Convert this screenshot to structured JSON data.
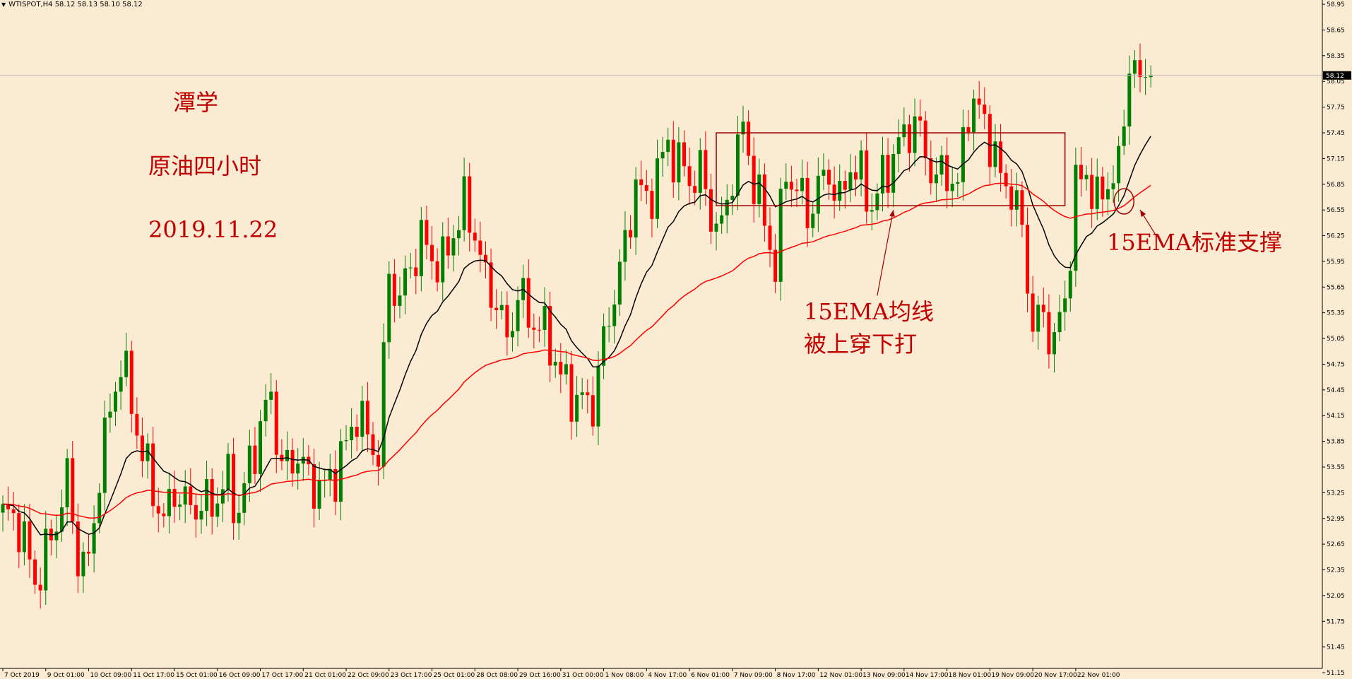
{
  "header": {
    "symbol_line": "WTISPOT,H4  58.12 58.13 58.10 58.12"
  },
  "annotations": {
    "author": "潭学",
    "subject": "原油四小时",
    "date": "2019.11.22",
    "broken_line_1": "15EMA均线",
    "broken_line_2": "被上穿下打",
    "support": "15EMA标准支撑"
  },
  "colors": {
    "background": "#fbebd3",
    "bull_candle": "#008000",
    "bear_candle": "#ff0000",
    "ema_fast": "#000000",
    "ema_slow": "#ff0000",
    "annotation": "#c00000"
  },
  "chart_data": {
    "type": "candlestick",
    "timeframe": "H4",
    "ylim": [
      51.2,
      59.0
    ],
    "y_ticks": [
      58.95,
      58.65,
      58.35,
      58.05,
      57.75,
      57.45,
      57.15,
      56.85,
      56.55,
      56.25,
      55.95,
      55.65,
      55.35,
      55.05,
      54.75,
      54.45,
      54.15,
      53.85,
      53.55,
      53.25,
      52.95,
      52.65,
      52.35,
      52.05,
      51.75,
      51.45,
      51.15
    ],
    "y_tick_labels": [
      "58.95",
      "58.65",
      "58.35",
      "58.05",
      "57.75",
      "57.45",
      "57.15",
      "56.85",
      "56.55",
      "56.25",
      "55.95",
      "55.65",
      "55.35",
      "55.05",
      "54.75",
      "54.45",
      "54.15",
      "53.85",
      "53.55",
      "53.25",
      "52.95",
      "52.65",
      "52.35",
      "52.05",
      "51.75",
      "51.45",
      "51.15"
    ],
    "current_price": 58.12,
    "current_price_label": "58.12",
    "x_tick_labels": [
      {
        "label": "7 Oct 2019",
        "bar": 0
      },
      {
        "label": "9 Oct 01:00",
        "bar": 8
      },
      {
        "label": "10 Oct 09:00",
        "bar": 16
      },
      {
        "label": "11 Oct 17:00",
        "bar": 24
      },
      {
        "label": "15 Oct 01:00",
        "bar": 32
      },
      {
        "label": "16 Oct 09:00",
        "bar": 40
      },
      {
        "label": "17 Oct 17:00",
        "bar": 48
      },
      {
        "label": "21 Oct 01:00",
        "bar": 56
      },
      {
        "label": "22 Oct 09:00",
        "bar": 64
      },
      {
        "label": "23 Oct 17:00",
        "bar": 72
      },
      {
        "label": "25 Oct 01:00",
        "bar": 80
      },
      {
        "label": "28 Oct 08:00",
        "bar": 88
      },
      {
        "label": "29 Oct 16:00",
        "bar": 96
      },
      {
        "label": "31 Oct 00:00",
        "bar": 104
      },
      {
        "label": "1 Nov 08:00",
        "bar": 112
      },
      {
        "label": "4 Nov 17:00",
        "bar": 120
      },
      {
        "label": "6 Nov 01:00",
        "bar": 128
      },
      {
        "label": "7 Nov 09:00",
        "bar": 136
      },
      {
        "label": "8 Nov 17:00",
        "bar": 144
      },
      {
        "label": "12 Nov 01:00",
        "bar": 152
      },
      {
        "label": "13 Nov 09:00",
        "bar": 160
      },
      {
        "label": "14 Nov 17:00",
        "bar": 168
      },
      {
        "label": "18 Nov 01:00",
        "bar": 176
      },
      {
        "label": "19 Nov 09:00",
        "bar": 184
      },
      {
        "label": "20 Nov 17:00",
        "bar": 192
      },
      {
        "label": "22 Nov 01:00",
        "bar": 200
      }
    ],
    "anchors": [
      [
        0,
        53.0
      ],
      [
        3,
        52.9
      ],
      [
        6,
        52.2
      ],
      [
        9,
        52.7
      ],
      [
        12,
        53.4
      ],
      [
        14,
        52.5
      ],
      [
        16,
        52.4
      ],
      [
        18,
        53.5
      ],
      [
        20,
        54.2
      ],
      [
        22,
        54.8
      ],
      [
        24,
        54.3
      ],
      [
        26,
        53.7
      ],
      [
        28,
        53.3
      ],
      [
        30,
        52.9
      ],
      [
        32,
        53.3
      ],
      [
        34,
        53.1
      ],
      [
        36,
        53.1
      ],
      [
        38,
        53.1
      ],
      [
        40,
        53.2
      ],
      [
        42,
        53.4
      ],
      [
        44,
        53.0
      ],
      [
        46,
        53.6
      ],
      [
        48,
        54.0
      ],
      [
        50,
        54.4
      ],
      [
        52,
        53.5
      ],
      [
        55,
        53.7
      ],
      [
        57,
        53.4
      ],
      [
        60,
        53.3
      ],
      [
        62,
        53.5
      ],
      [
        64,
        53.8
      ],
      [
        66,
        54.2
      ],
      [
        68,
        53.9
      ],
      [
        70,
        53.7
      ],
      [
        72,
        55.8
      ],
      [
        74,
        55.5
      ],
      [
        76,
        55.9
      ],
      [
        78,
        56.2
      ],
      [
        80,
        56.0
      ],
      [
        82,
        55.9
      ],
      [
        84,
        56.3
      ],
      [
        86,
        56.6
      ],
      [
        88,
        56.3
      ],
      [
        90,
        55.7
      ],
      [
        92,
        55.5
      ],
      [
        94,
        55.0
      ],
      [
        96,
        55.6
      ],
      [
        98,
        55.3
      ],
      [
        100,
        55.2
      ],
      [
        102,
        55.0
      ],
      [
        104,
        54.6
      ],
      [
        106,
        54.4
      ],
      [
        108,
        54.3
      ],
      [
        110,
        54.3
      ],
      [
        112,
        55.0
      ],
      [
        114,
        55.6
      ],
      [
        116,
        56.1
      ],
      [
        118,
        56.9
      ],
      [
        120,
        56.6
      ],
      [
        122,
        57.0
      ],
      [
        124,
        57.3
      ],
      [
        126,
        57.1
      ],
      [
        128,
        56.9
      ],
      [
        130,
        57.0
      ],
      [
        132,
        56.5
      ],
      [
        134,
        56.3
      ],
      [
        136,
        57.0
      ],
      [
        138,
        57.5
      ],
      [
        140,
        56.9
      ],
      [
        142,
        56.4
      ],
      [
        144,
        55.9
      ],
      [
        146,
        57.0
      ],
      [
        148,
        56.8
      ],
      [
        150,
        56.5
      ],
      [
        152,
        56.8
      ],
      [
        154,
        57.0
      ],
      [
        156,
        56.6
      ],
      [
        158,
        57.1
      ],
      [
        160,
        56.9
      ],
      [
        162,
        56.6
      ],
      [
        164,
        56.9
      ],
      [
        166,
        57.2
      ],
      [
        168,
        57.4
      ],
      [
        170,
        57.6
      ],
      [
        172,
        57.2
      ],
      [
        174,
        56.9
      ],
      [
        176,
        57.0
      ],
      [
        178,
        56.8
      ],
      [
        180,
        57.8
      ],
      [
        182,
        57.7
      ],
      [
        184,
        57.4
      ],
      [
        186,
        56.9
      ],
      [
        188,
        56.8
      ],
      [
        190,
        56.3
      ],
      [
        192,
        55.2
      ],
      [
        194,
        55.3
      ],
      [
        196,
        55.0
      ],
      [
        198,
        55.5
      ],
      [
        200,
        56.8
      ],
      [
        202,
        57.0
      ],
      [
        204,
        56.6
      ],
      [
        206,
        56.9
      ],
      [
        208,
        57.0
      ],
      [
        210,
        58.3
      ],
      [
        212,
        58.1
      ]
    ],
    "series": [
      {
        "name": "",
        "role": "ema_fast",
        "type": "line",
        "color": "#000000"
      },
      {
        "name": "",
        "role": "ema_slow",
        "type": "line",
        "color": "#ff0000"
      }
    ],
    "rectangle": {
      "bar_from": 133,
      "bar_to": 198,
      "price_top": 57.45,
      "price_bottom": 56.6,
      "color": "#a00000"
    },
    "circle": {
      "bar": 209,
      "price": 56.65,
      "color": "#a00000"
    },
    "arrows": [
      {
        "from_bar": 163,
        "from_price": 55.55,
        "to_bar": 166,
        "to_price": 56.55,
        "color": "#a00000"
      },
      {
        "from_bar": 215,
        "from_price": 56.25,
        "to_bar": 212,
        "to_price": 56.55,
        "color": "#a00000"
      }
    ],
    "grid": false,
    "legend": "none"
  }
}
